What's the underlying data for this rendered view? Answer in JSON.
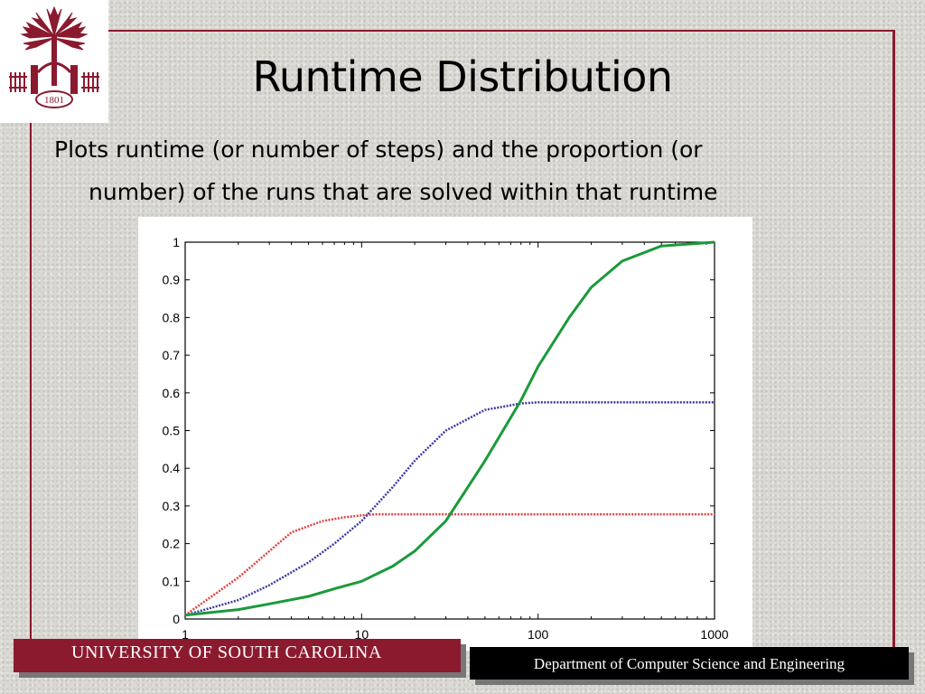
{
  "slide": {
    "title": "Runtime Distribution",
    "subtitle_line1": "Plots runtime (or number of steps) and the proportion (or",
    "subtitle_line2": "number) of the runs that are solved within that runtime",
    "footer_left": "UNIVERSITY OF SOUTH CAROLINA",
    "footer_right": "Department of Computer Science and Engineering",
    "logo_text": "1801",
    "accent_color": "#8b1a2f",
    "logo_icon": "palmetto-tree-logo"
  },
  "chart_data": {
    "type": "line",
    "title": "",
    "xlabel": "",
    "ylabel": "",
    "xscale": "log",
    "xlim": [
      1,
      1000
    ],
    "ylim": [
      0,
      1
    ],
    "x_ticks": [
      "1",
      "10",
      "100",
      "1000"
    ],
    "y_ticks": [
      "0",
      "0.1",
      "0.2",
      "0.3",
      "0.4",
      "0.5",
      "0.6",
      "0.7",
      "0.8",
      "0.9",
      "1"
    ],
    "series": [
      {
        "color": "#e04040",
        "style": "dotted",
        "x": [
          1,
          2,
          3,
          4,
          6,
          8,
          10,
          12,
          20,
          50,
          100,
          1000
        ],
        "y": [
          0.01,
          0.11,
          0.18,
          0.23,
          0.26,
          0.27,
          0.275,
          0.278,
          0.278,
          0.278,
          0.278,
          0.278
        ]
      },
      {
        "color": "#3a3aa0",
        "style": "dotted",
        "x": [
          1,
          2,
          3,
          5,
          7,
          10,
          15,
          20,
          30,
          50,
          80,
          100,
          1000
        ],
        "y": [
          0.01,
          0.05,
          0.09,
          0.15,
          0.2,
          0.26,
          0.35,
          0.42,
          0.5,
          0.555,
          0.572,
          0.575,
          0.575
        ]
      },
      {
        "color": "#1a9a3a",
        "style": "solid",
        "x": [
          1,
          2,
          3,
          5,
          7,
          10,
          15,
          20,
          30,
          50,
          80,
          100,
          150,
          200,
          300,
          500,
          1000
        ],
        "y": [
          0.01,
          0.025,
          0.04,
          0.06,
          0.08,
          0.1,
          0.14,
          0.18,
          0.26,
          0.42,
          0.58,
          0.67,
          0.8,
          0.88,
          0.95,
          0.99,
          1.0
        ]
      }
    ]
  }
}
